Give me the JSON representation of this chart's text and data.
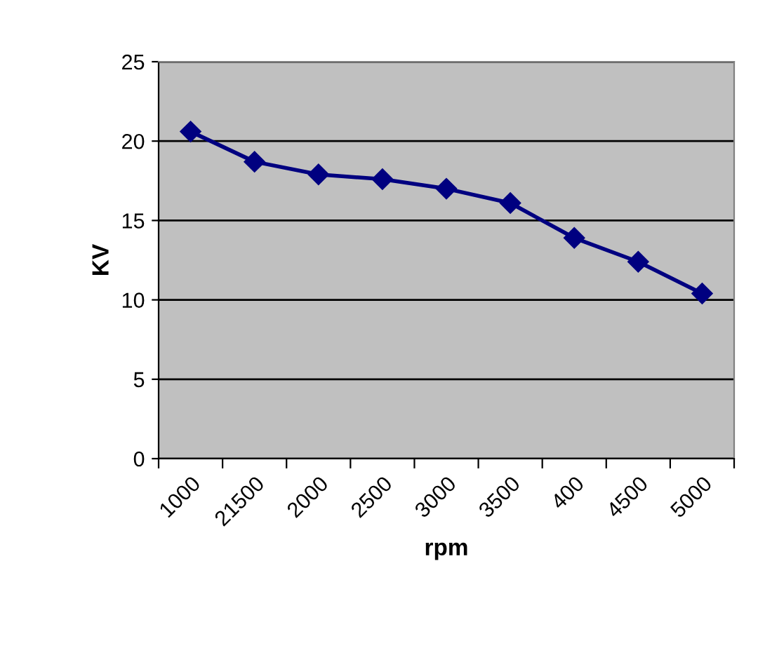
{
  "chart_data": {
    "type": "line",
    "xlabel": "rpm",
    "ylabel": "KV",
    "categories": [
      "1000",
      "21500",
      "2000",
      "2500",
      "3000",
      "3500",
      "400",
      "4500",
      "5000"
    ],
    "series": [
      {
        "color": "#000080",
        "values": [
          20.6,
          18.7,
          17.9,
          17.6,
          17.0,
          16.1,
          13.9,
          12.4,
          10.4
        ]
      }
    ],
    "ylim": [
      0,
      25
    ],
    "yticks": [
      0,
      5,
      10,
      15,
      20,
      25
    ],
    "grid": "y",
    "marker": "diamond",
    "line_style": "solid",
    "legend": false
  }
}
